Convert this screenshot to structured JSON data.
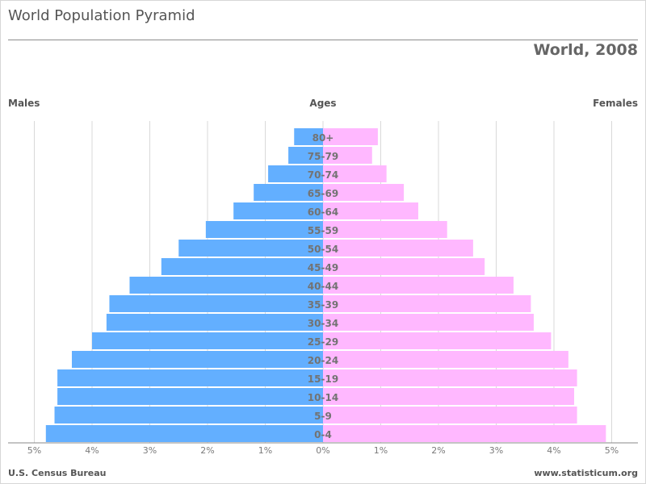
{
  "title": "World Population Pyramid",
  "subtitle": "World, 2008",
  "headers": {
    "left": "Males",
    "center": "Ages",
    "right": "Females"
  },
  "footer": {
    "left": "U.S. Census Bureau",
    "right": "www.statisticum.org"
  },
  "colors": {
    "males": "#63afff",
    "females": "#ffb8ff",
    "grid": "#d9d9d9",
    "axis": "#888888"
  },
  "chart_data": {
    "type": "bar",
    "orientation": "horizontal-pyramid",
    "categories": [
      "0-4",
      "5-9",
      "10-14",
      "15-19",
      "20-24",
      "25-29",
      "30-34",
      "35-39",
      "40-44",
      "45-49",
      "50-54",
      "55-59",
      "60-64",
      "65-69",
      "70-74",
      "75-79",
      "80+"
    ],
    "series": [
      {
        "name": "Males",
        "values": [
          4.8,
          4.65,
          4.6,
          4.6,
          4.35,
          4.0,
          3.75,
          3.7,
          3.35,
          2.8,
          2.5,
          2.03,
          1.55,
          1.2,
          0.95,
          0.6,
          0.5
        ]
      },
      {
        "name": "Females",
        "values": [
          4.9,
          4.4,
          4.35,
          4.4,
          4.25,
          3.95,
          3.65,
          3.6,
          3.3,
          2.8,
          2.6,
          2.15,
          1.65,
          1.4,
          1.1,
          0.85,
          0.95
        ]
      }
    ],
    "xticks": [
      "5%",
      "4%",
      "3%",
      "2%",
      "1%",
      "0%",
      "1%",
      "2%",
      "3%",
      "4%",
      "5%"
    ],
    "xlim": [
      -5,
      5
    ],
    "grid": true,
    "legend": "none"
  }
}
